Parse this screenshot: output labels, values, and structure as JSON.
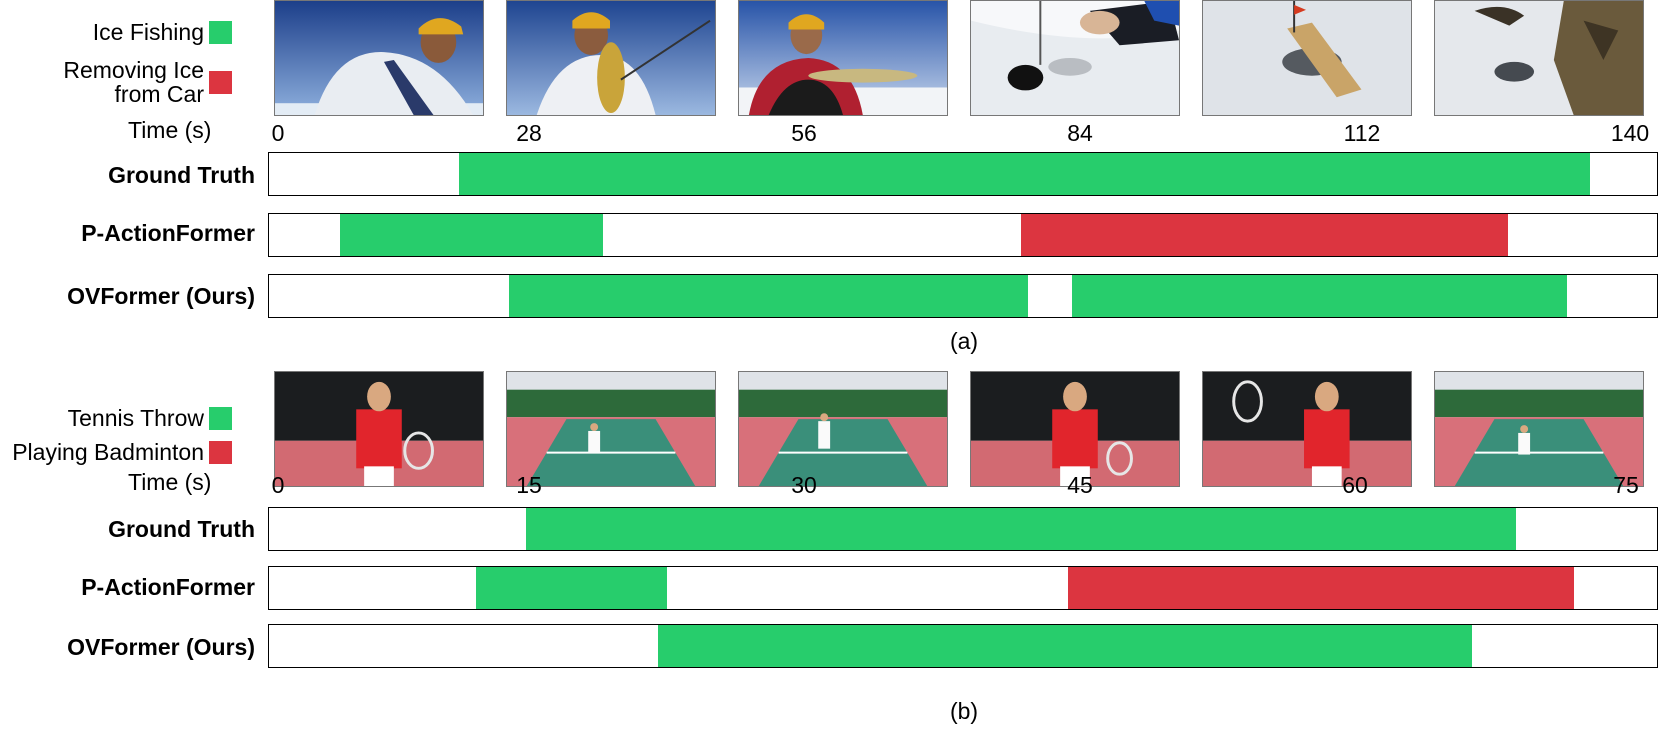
{
  "colors": {
    "green": "#27cd6c",
    "red": "#dc3540"
  },
  "panels": [
    {
      "id": "a",
      "caption": "(a)",
      "legend": [
        {
          "label": "Ice Fishing",
          "color": "#27cd6c"
        },
        {
          "label": "Removing Ice\nfrom Car",
          "color": "#dc3540"
        }
      ],
      "time_label": "Time (s)",
      "ticks": [
        "0",
        "28",
        "56",
        "84",
        "112",
        "140"
      ],
      "duration": 140,
      "frames": [
        "ice-fishing-frame-1",
        "ice-fishing-frame-2",
        "ice-fishing-frame-3",
        "ice-fishing-frame-4",
        "ice-fishing-frame-5",
        "ice-fishing-frame-6"
      ],
      "rows": [
        {
          "label": "Ground Truth",
          "segments": [
            {
              "start": 19.2,
              "end": 133.2,
              "class": "green"
            }
          ]
        },
        {
          "label": "P-ActionFormer",
          "segments": [
            {
              "start": 7.2,
              "end": 33.7,
              "class": "green"
            },
            {
              "start": 75.9,
              "end": 125.0,
              "class": "red"
            }
          ]
        },
        {
          "label": "OVFormer (Ours)",
          "segments": [
            {
              "start": 24.2,
              "end": 76.6,
              "class": "green"
            },
            {
              "start": 81.0,
              "end": 130.9,
              "class": "green"
            }
          ]
        }
      ]
    },
    {
      "id": "b",
      "caption": "(b)",
      "legend": [
        {
          "label": "Tennis Throw",
          "color": "#27cd6c"
        },
        {
          "label": "Playing Badminton",
          "color": "#dc3540"
        }
      ],
      "time_label": "Time (s)",
      "ticks": [
        "0",
        "15",
        "30",
        "45",
        "60",
        "75"
      ],
      "duration": 75,
      "frames": [
        "tennis-frame-1",
        "tennis-frame-2",
        "tennis-frame-3",
        "tennis-frame-4",
        "tennis-frame-5",
        "tennis-frame-6"
      ],
      "rows": [
        {
          "label": "Ground Truth",
          "segments": [
            {
              "start": 13.9,
              "end": 67.4,
              "class": "green"
            }
          ]
        },
        {
          "label": "P-ActionFormer",
          "segments": [
            {
              "start": 11.2,
              "end": 21.5,
              "class": "green"
            },
            {
              "start": 43.2,
              "end": 70.5,
              "class": "red"
            }
          ]
        },
        {
          "label": "OVFormer (Ours)",
          "segments": [
            {
              "start": 21.0,
              "end": 65.0,
              "class": "green"
            }
          ]
        }
      ]
    }
  ]
}
